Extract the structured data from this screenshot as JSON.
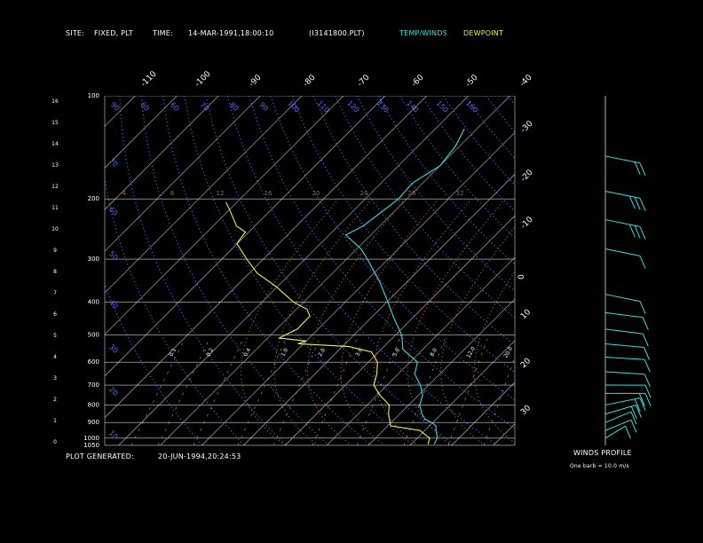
{
  "header": {
    "site_label": "SITE:",
    "site_value": "FIXED, PLT",
    "time_label": "TIME:",
    "time_value": "14-MAR-1991,18:00:10",
    "file": "(I3141800.PLT)",
    "temp_label": "TEMP/WINDS",
    "dew_label": "DEWPOINT"
  },
  "footer": {
    "generated_label": "PLOT GENERATED:",
    "generated_value": "20-JUN-1994,20:24:53"
  },
  "winds": {
    "title": "WINDS PROFILE",
    "note": "One barb = 10.0 m/s"
  },
  "colors": {
    "temp": "#33e0e0",
    "dewpoint": "#f0f040",
    "isotherm": "#cfcfcf",
    "pressure": "#cfcfcf",
    "dry_adiabat": "#4c6cff",
    "moist_adiabat": "#b85a3a",
    "mixing_ratio": "#cfcfcf",
    "wind": "#33e0e0",
    "axis_text": "#ffffff"
  },
  "chart_data": {
    "type": "line",
    "chart_kind": "skew-T log-P",
    "pressure_levels_hpa": [
      100,
      200,
      300,
      400,
      500,
      600,
      700,
      800,
      900,
      1000,
      1050
    ],
    "height_km_ticks": [
      "16",
      "15",
      "14",
      "13",
      "12",
      "11",
      "10",
      "9",
      "8",
      "7",
      "6",
      "5",
      "4",
      "3",
      "2",
      "1",
      "0"
    ],
    "isotherm_labels_c": [
      "-110",
      "-100",
      "-90",
      "-80",
      "-70",
      "-60",
      "-50",
      "-40",
      "-30",
      "-20",
      "-10",
      "0",
      "10",
      "20",
      "30"
    ],
    "adiabat_labels": [
      "90",
      "80",
      "60",
      "70",
      "80",
      "90",
      "100",
      "110",
      "120",
      "130",
      "140",
      "150",
      "160",
      "70",
      "60",
      "50",
      "40",
      "30",
      "20",
      "10"
    ],
    "mixing_ratio_labels": [
      "0.1",
      "0.2",
      "0.4",
      "1.0",
      "2.0",
      "3.0",
      "5.0",
      "8.0",
      "12.0",
      "20.0"
    ],
    "moist_adiabat_labels": [
      "4",
      "8",
      "12",
      "16",
      "20",
      "24",
      "28",
      "32"
    ],
    "series": [
      {
        "name": "TEMP/WINDS",
        "points": [
          {
            "p": 1040,
            "t": 15.5
          },
          {
            "p": 1000,
            "t": 14.8
          },
          {
            "p": 950,
            "t": 12.7
          },
          {
            "p": 920,
            "t": 11.5
          },
          {
            "p": 900,
            "t": 9.7
          },
          {
            "p": 880,
            "t": 7.3
          },
          {
            "p": 850,
            "t": 5.3
          },
          {
            "p": 800,
            "t": 2.6
          },
          {
            "p": 750,
            "t": 1.0
          },
          {
            "p": 700,
            "t": -2.0
          },
          {
            "p": 650,
            "t": -6.0
          },
          {
            "p": 600,
            "t": -8.2
          },
          {
            "p": 550,
            "t": -14.8
          },
          {
            "p": 500,
            "t": -18.5
          },
          {
            "p": 450,
            "t": -24.0
          },
          {
            "p": 400,
            "t": -29.8
          },
          {
            "p": 350,
            "t": -36.5
          },
          {
            "p": 300,
            "t": -45.0
          },
          {
            "p": 280,
            "t": -49.0
          },
          {
            "p": 255,
            "t": -56.0
          },
          {
            "p": 240,
            "t": -54.0
          },
          {
            "p": 220,
            "t": -53.0
          },
          {
            "p": 200,
            "t": -52.0
          },
          {
            "p": 180,
            "t": -52.5
          },
          {
            "p": 160,
            "t": -50.0
          },
          {
            "p": 140,
            "t": -51.0
          },
          {
            "p": 125,
            "t": -53.0
          }
        ]
      },
      {
        "name": "DEWPOINT",
        "points": [
          {
            "p": 1040,
            "t": 14.0
          },
          {
            "p": 1000,
            "t": 13.0
          },
          {
            "p": 950,
            "t": 8.8
          },
          {
            "p": 920,
            "t": 0.6
          },
          {
            "p": 850,
            "t": -2.7
          },
          {
            "p": 800,
            "t": -4.7
          },
          {
            "p": 750,
            "t": -9.2
          },
          {
            "p": 700,
            "t": -13.2
          },
          {
            "p": 650,
            "t": -15.1
          },
          {
            "p": 600,
            "t": -17.8
          },
          {
            "p": 560,
            "t": -21.7
          },
          {
            "p": 540,
            "t": -28.4
          },
          {
            "p": 530,
            "t": -41.3
          },
          {
            "p": 520,
            "t": -40.1
          },
          {
            "p": 510,
            "t": -47.2
          },
          {
            "p": 480,
            "t": -45.0
          },
          {
            "p": 440,
            "t": -45.1
          },
          {
            "p": 420,
            "t": -47.5
          },
          {
            "p": 400,
            "t": -52.5
          },
          {
            "p": 360,
            "t": -60.5
          },
          {
            "p": 330,
            "t": -68.0
          },
          {
            "p": 300,
            "t": -74.0
          },
          {
            "p": 270,
            "t": -80.1
          },
          {
            "p": 250,
            "t": -80.8
          },
          {
            "p": 240,
            "t": -84.4
          },
          {
            "p": 215,
            "t": -90.0
          },
          {
            "p": 205,
            "t": -92.5
          }
        ]
      }
    ],
    "winds_profile": {
      "units": "m/s",
      "barb_value": 10.0,
      "samples": [
        {
          "p": 150,
          "speed": 20,
          "dir": 300
        },
        {
          "p": 190,
          "speed": 30,
          "dir": 300
        },
        {
          "p": 230,
          "speed": 30,
          "dir": 300
        },
        {
          "p": 280,
          "speed": 10,
          "dir": 300
        },
        {
          "p": 380,
          "speed": 10,
          "dir": 300
        },
        {
          "p": 430,
          "speed": 10,
          "dir": 290
        },
        {
          "p": 480,
          "speed": 10,
          "dir": 290
        },
        {
          "p": 530,
          "speed": 10,
          "dir": 285
        },
        {
          "p": 580,
          "speed": 10,
          "dir": 280
        },
        {
          "p": 640,
          "speed": 10,
          "dir": 280
        },
        {
          "p": 700,
          "speed": 10,
          "dir": 270
        },
        {
          "p": 740,
          "speed": 20,
          "dir": 270
        },
        {
          "p": 800,
          "speed": 20,
          "dir": 240
        },
        {
          "p": 850,
          "speed": 20,
          "dir": 230
        },
        {
          "p": 900,
          "speed": 10,
          "dir": 220
        },
        {
          "p": 950,
          "speed": 10,
          "dir": 220
        },
        {
          "p": 1000,
          "speed": 10,
          "dir": 210
        }
      ]
    }
  }
}
